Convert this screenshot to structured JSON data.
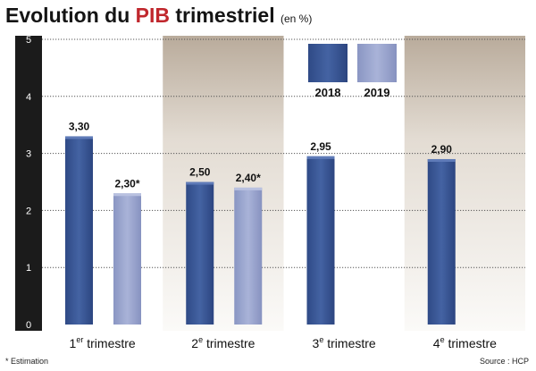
{
  "chart_data": {
    "type": "bar",
    "title_main": "Evolution du",
    "title_accent": "PIB",
    "title_rest": "trimestriel",
    "title_unit": "(en %)",
    "categories": [
      {
        "prefix": "1",
        "sup": "er",
        "suffix": " trimestre"
      },
      {
        "prefix": "2",
        "sup": "e",
        "suffix": " trimestre"
      },
      {
        "prefix": "3",
        "sup": "e",
        "suffix": " trimestre"
      },
      {
        "prefix": "4",
        "sup": "e",
        "suffix": " trimestre"
      }
    ],
    "series": [
      {
        "name": "2018",
        "color": "#3c5897",
        "values": [
          3.3,
          2.5,
          2.95,
          2.9
        ],
        "labels": [
          "3,30",
          "2,50",
          "2,95",
          "2,90"
        ]
      },
      {
        "name": "2019",
        "color": "#9aa5cf",
        "values": [
          2.3,
          2.4,
          null,
          null
        ],
        "labels": [
          "2,30*",
          "2,40*",
          "",
          ""
        ]
      }
    ],
    "yticks": [
      "0",
      "1",
      "2",
      "3",
      "4",
      "5"
    ],
    "ylim": [
      0,
      5
    ],
    "grid": true,
    "legend_position": "top-center-right",
    "footnote": "* Estimation",
    "source": "Source : HCP",
    "colors": {
      "accent": "#c0272d",
      "band_dark": "#c3b7a9",
      "band_light": "#ffffff",
      "axis": "#1b1b1b"
    }
  }
}
